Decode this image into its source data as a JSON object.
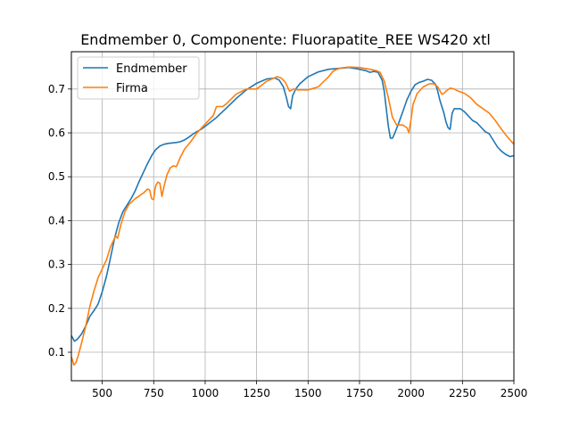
{
  "chart_data": {
    "type": "line",
    "title": "Endmember 0, Componente: Fluorapatite_REE WS420 xtl",
    "xlabel": "",
    "ylabel": "",
    "xlim": [
      350,
      2500
    ],
    "ylim": [
      0.035,
      0.785
    ],
    "xticks": [
      500,
      750,
      1000,
      1250,
      1500,
      1750,
      2000,
      2250,
      2500
    ],
    "yticks": [
      0.1,
      0.2,
      0.3,
      0.4,
      0.5,
      0.6,
      0.7
    ],
    "xtick_labels": [
      "500",
      "750",
      "1000",
      "1250",
      "1500",
      "1750",
      "2000",
      "2250",
      "2500"
    ],
    "ytick_labels": [
      "0.1",
      "0.2",
      "0.3",
      "0.4",
      "0.5",
      "0.6",
      "0.7"
    ],
    "grid": true,
    "legend_position": "top-left",
    "series": [
      {
        "name": "Endmember",
        "color": "#1f77b4",
        "x": [
          350,
          365,
          380,
          400,
          420,
          440,
          460,
          480,
          500,
          520,
          540,
          560,
          580,
          600,
          620,
          640,
          660,
          680,
          700,
          720,
          740,
          760,
          780,
          800,
          820,
          840,
          860,
          880,
          900,
          920,
          940,
          960,
          980,
          1000,
          1050,
          1100,
          1150,
          1200,
          1250,
          1300,
          1340,
          1360,
          1380,
          1395,
          1405,
          1415,
          1425,
          1440,
          1460,
          1500,
          1550,
          1600,
          1650,
          1700,
          1750,
          1780,
          1800,
          1820,
          1840,
          1860,
          1870,
          1880,
          1890,
          1900,
          1910,
          1920,
          1940,
          1960,
          1980,
          2000,
          2020,
          2040,
          2060,
          2080,
          2100,
          2120,
          2130,
          2140,
          2150,
          2160,
          2170,
          2180,
          2190,
          2200,
          2210,
          2220,
          2240,
          2260,
          2280,
          2300,
          2320,
          2340,
          2360,
          2380,
          2400,
          2420,
          2440,
          2460,
          2480,
          2500
        ],
        "y": [
          0.138,
          0.125,
          0.13,
          0.142,
          0.16,
          0.182,
          0.195,
          0.21,
          0.238,
          0.272,
          0.315,
          0.36,
          0.395,
          0.42,
          0.435,
          0.45,
          0.468,
          0.49,
          0.51,
          0.53,
          0.548,
          0.562,
          0.57,
          0.574,
          0.576,
          0.577,
          0.578,
          0.58,
          0.584,
          0.59,
          0.597,
          0.603,
          0.608,
          0.615,
          0.633,
          0.655,
          0.678,
          0.698,
          0.713,
          0.723,
          0.725,
          0.72,
          0.705,
          0.68,
          0.66,
          0.655,
          0.685,
          0.7,
          0.712,
          0.728,
          0.739,
          0.745,
          0.747,
          0.749,
          0.745,
          0.742,
          0.738,
          0.74,
          0.738,
          0.72,
          0.695,
          0.655,
          0.615,
          0.588,
          0.588,
          0.598,
          0.622,
          0.648,
          0.675,
          0.695,
          0.71,
          0.715,
          0.718,
          0.722,
          0.72,
          0.71,
          0.695,
          0.675,
          0.66,
          0.645,
          0.625,
          0.612,
          0.608,
          0.645,
          0.655,
          0.655,
          0.655,
          0.648,
          0.638,
          0.628,
          0.623,
          0.613,
          0.603,
          0.598,
          0.583,
          0.568,
          0.558,
          0.551,
          0.546,
          0.548
        ]
      },
      {
        "name": "Firma",
        "color": "#ff7f0e",
        "x": [
          350,
          362,
          372,
          385,
          400,
          420,
          440,
          460,
          480,
          500,
          520,
          540,
          555,
          565,
          575,
          590,
          610,
          630,
          660,
          700,
          720,
          730,
          740,
          750,
          755,
          760,
          770,
          780,
          790,
          800,
          815,
          830,
          845,
          860,
          880,
          900,
          930,
          960,
          1000,
          1040,
          1055,
          1070,
          1085,
          1100,
          1150,
          1200,
          1250,
          1300,
          1330,
          1350,
          1370,
          1390,
          1410,
          1430,
          1450,
          1500,
          1550,
          1600,
          1620,
          1640,
          1660,
          1700,
          1750,
          1800,
          1830,
          1850,
          1870,
          1890,
          1910,
          1930,
          1960,
          1980,
          1990,
          2000,
          2010,
          2030,
          2060,
          2090,
          2110,
          2130,
          2150,
          2160,
          2170,
          2190,
          2210,
          2230,
          2260,
          2290,
          2320,
          2350,
          2380,
          2410,
          2440,
          2470,
          2500
        ],
        "y": [
          0.09,
          0.071,
          0.076,
          0.095,
          0.122,
          0.16,
          0.205,
          0.24,
          0.27,
          0.29,
          0.31,
          0.34,
          0.355,
          0.365,
          0.36,
          0.39,
          0.42,
          0.437,
          0.45,
          0.463,
          0.472,
          0.47,
          0.45,
          0.448,
          0.468,
          0.48,
          0.488,
          0.485,
          0.455,
          0.478,
          0.505,
          0.52,
          0.525,
          0.523,
          0.545,
          0.563,
          0.58,
          0.6,
          0.62,
          0.64,
          0.66,
          0.66,
          0.66,
          0.665,
          0.688,
          0.7,
          0.7,
          0.718,
          0.724,
          0.728,
          0.725,
          0.715,
          0.695,
          0.7,
          0.698,
          0.698,
          0.705,
          0.728,
          0.74,
          0.745,
          0.748,
          0.75,
          0.749,
          0.745,
          0.742,
          0.738,
          0.718,
          0.68,
          0.635,
          0.618,
          0.618,
          0.612,
          0.6,
          0.63,
          0.665,
          0.69,
          0.705,
          0.712,
          0.712,
          0.705,
          0.688,
          0.69,
          0.695,
          0.702,
          0.7,
          0.695,
          0.69,
          0.68,
          0.665,
          0.655,
          0.645,
          0.628,
          0.608,
          0.59,
          0.574
        ]
      }
    ]
  }
}
